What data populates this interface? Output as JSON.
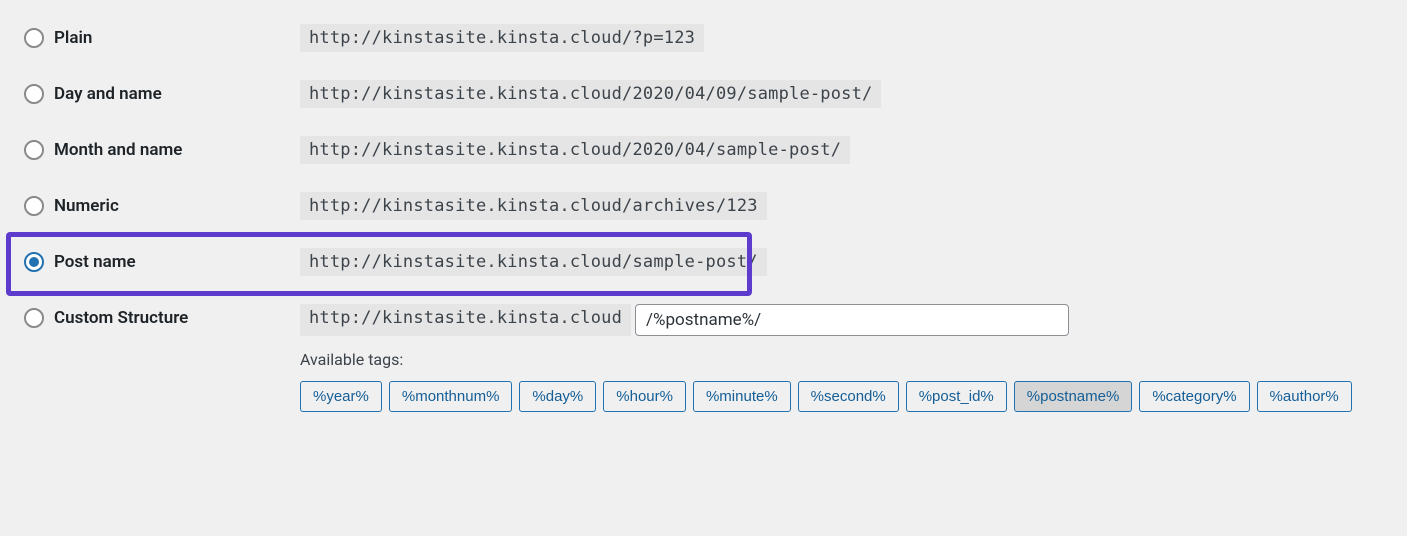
{
  "options": [
    {
      "key": "plain",
      "label": "Plain",
      "example": "http://kinstasite.kinsta.cloud/?p=123",
      "selected": false,
      "highlighted": false
    },
    {
      "key": "day-name",
      "label": "Day and name",
      "example": "http://kinstasite.kinsta.cloud/2020/04/09/sample-post/",
      "selected": false,
      "highlighted": false
    },
    {
      "key": "month-name",
      "label": "Month and name",
      "example": "http://kinstasite.kinsta.cloud/2020/04/sample-post/",
      "selected": false,
      "highlighted": false
    },
    {
      "key": "numeric",
      "label": "Numeric",
      "example": "http://kinstasite.kinsta.cloud/archives/123",
      "selected": false,
      "highlighted": false
    },
    {
      "key": "post-name",
      "label": "Post name",
      "example": "http://kinstasite.kinsta.cloud/sample-post/",
      "selected": true,
      "highlighted": true
    }
  ],
  "custom": {
    "label": "Custom Structure",
    "prefix": "http://kinstasite.kinsta.cloud",
    "value": "/%postname%/",
    "available_tags_label": "Available tags:",
    "tags": [
      {
        "text": "%year%",
        "active": false
      },
      {
        "text": "%monthnum%",
        "active": false
      },
      {
        "text": "%day%",
        "active": false
      },
      {
        "text": "%hour%",
        "active": false
      },
      {
        "text": "%minute%",
        "active": false
      },
      {
        "text": "%second%",
        "active": false
      },
      {
        "text": "%post_id%",
        "active": false
      },
      {
        "text": "%postname%",
        "active": true
      },
      {
        "text": "%category%",
        "active": false
      },
      {
        "text": "%author%",
        "active": false
      }
    ]
  },
  "colors": {
    "highlight_border": "#5d3bcd",
    "radio_checked": "#2271b1",
    "tag_border": "#2271b1",
    "code_bg": "#e5e5e5",
    "page_bg": "#f0f0f1"
  }
}
